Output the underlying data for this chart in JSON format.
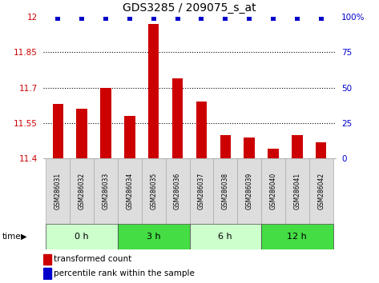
{
  "title": "GDS3285 / 209075_s_at",
  "samples": [
    "GSM286031",
    "GSM286032",
    "GSM286033",
    "GSM286034",
    "GSM286035",
    "GSM286036",
    "GSM286037",
    "GSM286038",
    "GSM286039",
    "GSM286040",
    "GSM286041",
    "GSM286042"
  ],
  "bar_values": [
    11.63,
    11.61,
    11.7,
    11.58,
    11.97,
    11.74,
    11.64,
    11.5,
    11.49,
    11.44,
    11.5,
    11.47
  ],
  "percentile_values": [
    99,
    99,
    99,
    99,
    99,
    99,
    99,
    99,
    99,
    99,
    99,
    99
  ],
  "bar_color": "#cc0000",
  "percentile_color": "#0000cc",
  "ylim_left": [
    11.4,
    12.0
  ],
  "ylim_right": [
    0,
    100
  ],
  "yticks_left": [
    11.4,
    11.55,
    11.7,
    11.85,
    12.0
  ],
  "yticks_right": [
    0,
    25,
    50,
    75,
    100
  ],
  "yticklabels_left": [
    "11.4",
    "11.55",
    "11.7",
    "11.85",
    "12"
  ],
  "yticklabels_right": [
    "0",
    "25",
    "50",
    "75",
    "100%"
  ],
  "groups": [
    {
      "label": "0 h",
      "start": 0,
      "end": 3,
      "color": "#ccffcc"
    },
    {
      "label": "3 h",
      "start": 3,
      "end": 6,
      "color": "#44dd44"
    },
    {
      "label": "6 h",
      "start": 6,
      "end": 9,
      "color": "#ccffcc"
    },
    {
      "label": "12 h",
      "start": 9,
      "end": 12,
      "color": "#44dd44"
    }
  ],
  "time_label": "time",
  "legend_bar_label": "transformed count",
  "legend_pct_label": "percentile rank within the sample",
  "bar_width": 0.45,
  "background_color": "#ffffff",
  "sample_box_color": "#dddddd",
  "sample_box_edge": "#aaaaaa"
}
